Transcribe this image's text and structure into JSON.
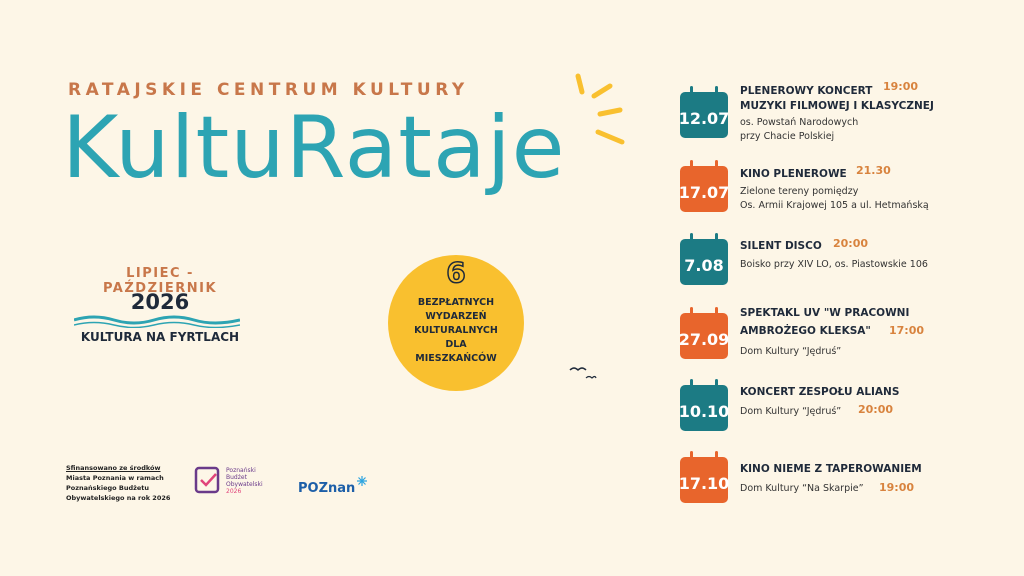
{
  "header": {
    "organizer": "RATAJSKIE CENTRUM KULTURY",
    "title": "KultuRataje"
  },
  "season": {
    "months": "LIPIEC - PAŹDZIERNIK",
    "year": "2026",
    "tagline": "KULTURA NA FYRTLACH"
  },
  "badge": {
    "number": "6",
    "lines": [
      "BEZPŁATNYCH",
      "WYDARZEŃ",
      "KULTURALNYCH",
      "DLA",
      "MIESZKAŃCÓW"
    ]
  },
  "events": [
    {
      "date": "12.07",
      "title": [
        "PLENEROWY KONCERT",
        "MUZYKI FILMOWEJ I KLASYCZNEJ"
      ],
      "time": "19:00",
      "place": [
        "os. Powstań Narodowych",
        "przy Chacie Polskiej"
      ]
    },
    {
      "date": "17.07",
      "title": [
        "KINO PLENEROWE"
      ],
      "time": "21.30",
      "place": [
        "Zielone tereny pomiędzy",
        "Os. Armii Krajowej 105 a ul. Hetmańską"
      ]
    },
    {
      "date": "7.08",
      "title": [
        "SILENT DISCO"
      ],
      "time": "20:00",
      "place": [
        "Boisko przy XIV LO, os. Piastowskie 106"
      ]
    },
    {
      "date": "27.09",
      "title": [
        "SPEKTAKL UV  \"W PRACOWNI",
        "AMBROŻEGO KLEKSA\""
      ],
      "time": "17:00",
      "place": [
        "Dom Kultury “Jędruś”"
      ]
    },
    {
      "date": "10.10",
      "title": [
        "KONCERT ZESPOŁU ALIANS"
      ],
      "time": "20:00",
      "place": [
        "Dom Kultury “Jędruś”"
      ]
    },
    {
      "date": "17.10",
      "title": [
        "KINO NIEME Z TAPEROWANIEM"
      ],
      "time": "19:00",
      "place": [
        "Dom Kultury “Na Skarpie”"
      ]
    }
  ],
  "footer": {
    "funding": [
      "Sfinansowano ze środków",
      "Miasta Poznania w ramach",
      "Poznańskiego Budżetu",
      "Obywatelskiego na rok 2026"
    ],
    "pbo": [
      "Poznański",
      "Budżet",
      "Obywatelski",
      "2026"
    ],
    "city": "POZnan"
  }
}
